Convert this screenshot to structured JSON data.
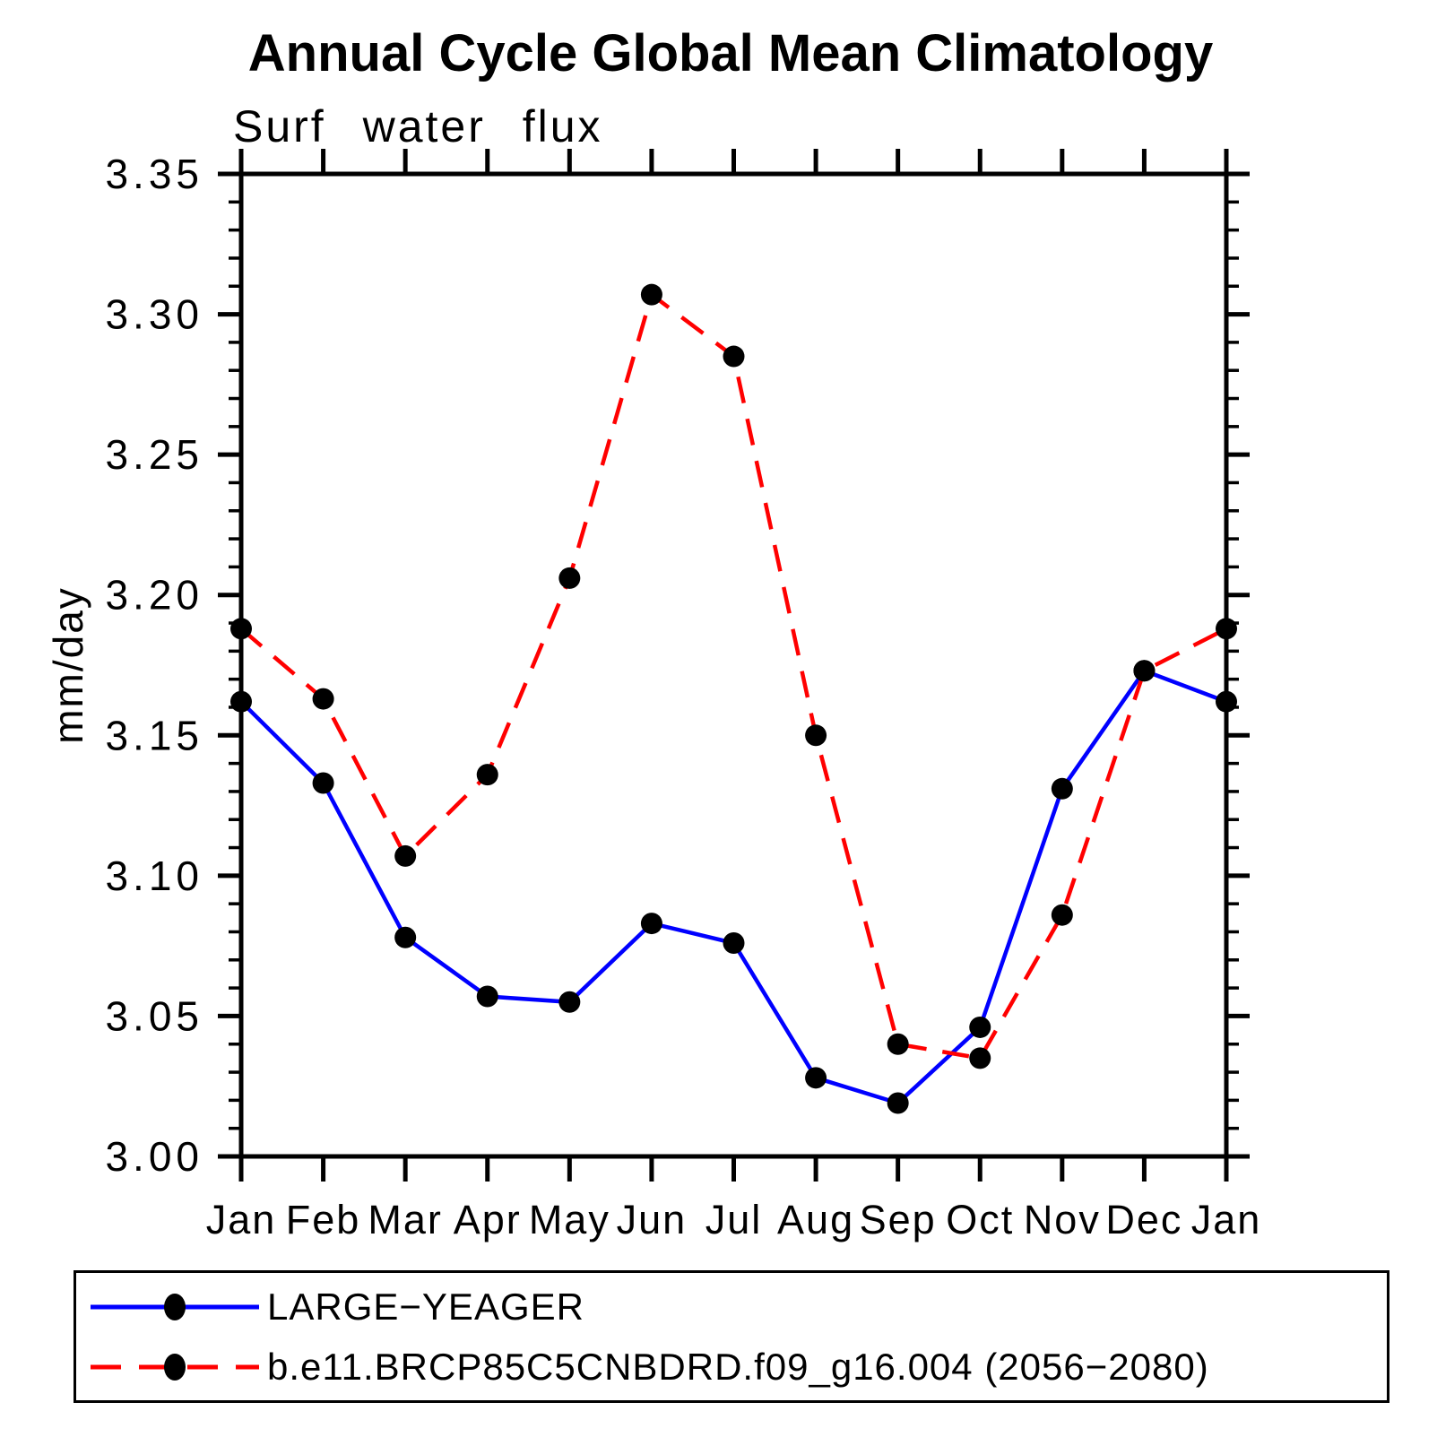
{
  "chart_data": {
    "type": "line",
    "title": "Annual Cycle Global Mean Climatology",
    "subtitle": "Surf water flux",
    "ylabel": "mm/day",
    "ylim": [
      3.0,
      3.35
    ],
    "ytick_step": 0.05,
    "ytick_minor_step": 0.01,
    "yticks": [
      "3.00",
      "3.05",
      "3.10",
      "3.15",
      "3.20",
      "3.25",
      "3.30",
      "3.35"
    ],
    "categories": [
      "Jan",
      "Feb",
      "Mar",
      "Apr",
      "May",
      "Jun",
      "Jul",
      "Aug",
      "Sep",
      "Oct",
      "Nov",
      "Dec",
      "Jan"
    ],
    "grid": false,
    "legend_position": "bottom-left-box",
    "marker": {
      "shape": "circle",
      "color": "#000000",
      "radius": 12
    },
    "axis_color": "#000000",
    "series": [
      {
        "name": "LARGE−YEAGER",
        "color": "#0000ff",
        "line_style": "solid",
        "values": [
          3.162,
          3.133,
          3.078,
          3.057,
          3.055,
          3.083,
          3.076,
          3.028,
          3.019,
          3.046,
          3.131,
          3.173,
          3.162
        ]
      },
      {
        "name": "b.e11.BRCP85C5CNBDRD.f09_g16.004 (2056−2080)",
        "color": "#ff0000",
        "line_style": "dashed",
        "values": [
          3.188,
          3.163,
          3.107,
          3.136,
          3.206,
          3.307,
          3.285,
          3.15,
          3.04,
          3.035,
          3.086,
          3.173,
          3.188
        ]
      }
    ]
  }
}
